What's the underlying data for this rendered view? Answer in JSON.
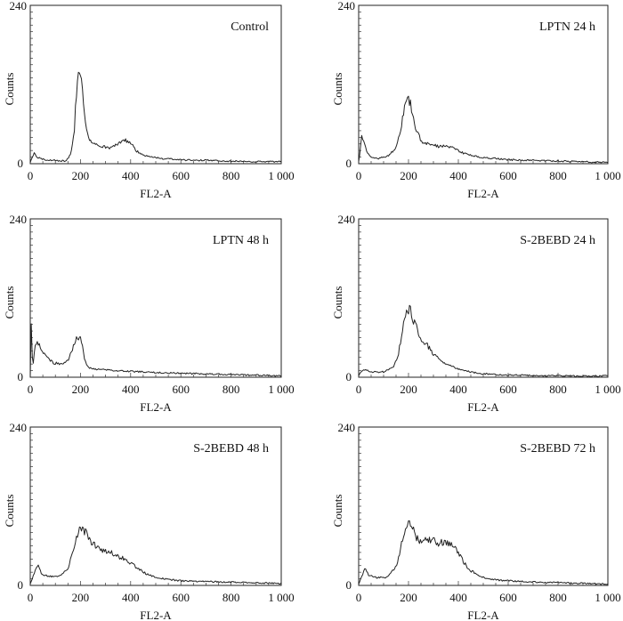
{
  "chart_data": [
    {
      "type": "line",
      "title": "Control",
      "xlabel": "FL2-A",
      "ylabel": "Counts",
      "xlim": [
        0,
        1000
      ],
      "ylim": [
        0,
        240
      ],
      "x_ticks": [
        0,
        200,
        400,
        600,
        800,
        1000
      ],
      "x_tick_labels": [
        "0",
        "200",
        "400",
        "600",
        "800",
        "1 000"
      ],
      "y_tick_labels": [
        "0",
        "240"
      ],
      "series": [
        {
          "name": "Control",
          "x": [
            0,
            15,
            30,
            60,
            100,
            140,
            160,
            175,
            185,
            195,
            205,
            215,
            230,
            250,
            280,
            320,
            350,
            380,
            400,
            420,
            450,
            480,
            520,
            560,
            600,
            650,
            700,
            800,
            900,
            1000
          ],
          "y": [
            3,
            16,
            9,
            6,
            5,
            4,
            13,
            45,
            118,
            145,
            118,
            72,
            40,
            30,
            26,
            24,
            30,
            35,
            32,
            20,
            13,
            10,
            8,
            7,
            6,
            5,
            5,
            4,
            3,
            3
          ]
        }
      ]
    },
    {
      "type": "line",
      "title": "LPTN 24 h",
      "xlabel": "FL2-A",
      "ylabel": "Counts",
      "xlim": [
        0,
        1000
      ],
      "ylim": [
        0,
        240
      ],
      "x_ticks": [
        0,
        200,
        400,
        600,
        800,
        1000
      ],
      "x_tick_labels": [
        "0",
        "200",
        "400",
        "600",
        "800",
        "1 000"
      ],
      "y_tick_labels": [
        "0",
        "240"
      ],
      "series": [
        {
          "name": "LPTN 24 h",
          "x": [
            0,
            5,
            12,
            22,
            35,
            50,
            80,
            120,
            150,
            170,
            185,
            200,
            212,
            225,
            250,
            280,
            320,
            350,
            380,
            420,
            460,
            500,
            550,
            600,
            700,
            800,
            900,
            1000
          ],
          "y": [
            4,
            16,
            42,
            30,
            16,
            10,
            8,
            12,
            25,
            55,
            88,
            100,
            85,
            55,
            35,
            30,
            26,
            28,
            24,
            16,
            12,
            9,
            8,
            6,
            5,
            4,
            3,
            2
          ]
        }
      ]
    },
    {
      "type": "line",
      "title": "LPTN 48 h",
      "xlabel": "FL2-A",
      "ylabel": "Counts",
      "xlim": [
        0,
        1000
      ],
      "ylim": [
        0,
        240
      ],
      "x_ticks": [
        0,
        200,
        400,
        600,
        800,
        1000
      ],
      "x_tick_labels": [
        "0",
        "200",
        "400",
        "600",
        "800",
        "1 000"
      ],
      "y_tick_labels": [
        "0",
        "240"
      ],
      "series": [
        {
          "name": "LPTN 48 h",
          "x": [
            0,
            3,
            5,
            8,
            10,
            12,
            20,
            30,
            45,
            60,
            90,
            120,
            150,
            170,
            185,
            195,
            205,
            215,
            230,
            260,
            300,
            350,
            400,
            500,
            600,
            700,
            800,
            900,
            1000
          ],
          "y": [
            0,
            70,
            80,
            30,
            5,
            20,
            48,
            55,
            40,
            32,
            22,
            20,
            25,
            45,
            60,
            62,
            55,
            30,
            15,
            12,
            11,
            10,
            9,
            7,
            6,
            5,
            4,
            3,
            2
          ]
        }
      ]
    },
    {
      "type": "line",
      "title": "S-2BEBD 24 h",
      "xlabel": "FL2-A",
      "ylabel": "Counts",
      "xlim": [
        0,
        1000
      ],
      "ylim": [
        0,
        240
      ],
      "x_ticks": [
        0,
        200,
        400,
        600,
        800,
        1000
      ],
      "x_tick_labels": [
        "0",
        "200",
        "400",
        "600",
        "800",
        "1 000"
      ],
      "y_tick_labels": [
        "0",
        "240"
      ],
      "series": [
        {
          "name": "S-2BEBD 24 h",
          "x": [
            0,
            20,
            50,
            100,
            140,
            160,
            175,
            190,
            200,
            210,
            225,
            250,
            275,
            300,
            330,
            370,
            420,
            480,
            550,
            650,
            800,
            1000
          ],
          "y": [
            3,
            12,
            8,
            8,
            15,
            35,
            70,
            98,
            105,
            98,
            80,
            60,
            48,
            35,
            24,
            17,
            10,
            6,
            4,
            3,
            2,
            2
          ]
        }
      ]
    },
    {
      "type": "line",
      "title": "S-2BEBD 48 h",
      "xlabel": "FL2-A",
      "ylabel": "Counts",
      "xlim": [
        0,
        1000
      ],
      "ylim": [
        0,
        240
      ],
      "x_ticks": [
        0,
        200,
        400,
        600,
        800,
        1000
      ],
      "x_tick_labels": [
        "0",
        "200",
        "400",
        "600",
        "800",
        "1 000"
      ],
      "y_tick_labels": [
        "0",
        "240"
      ],
      "series": [
        {
          "name": "S-2BEBD 48 h",
          "x": [
            0,
            15,
            30,
            45,
            70,
            110,
            150,
            175,
            190,
            205,
            220,
            240,
            270,
            300,
            340,
            380,
            420,
            460,
            500,
            550,
            600,
            700,
            800,
            900,
            1000
          ],
          "y": [
            3,
            18,
            30,
            18,
            14,
            13,
            25,
            55,
            78,
            88,
            80,
            65,
            58,
            52,
            46,
            40,
            28,
            18,
            12,
            9,
            7,
            6,
            5,
            4,
            3
          ]
        }
      ]
    },
    {
      "type": "line",
      "title": "S-2BEBD 72 h",
      "xlabel": "FL2-A",
      "ylabel": "Counts",
      "xlim": [
        0,
        1000
      ],
      "ylim": [
        0,
        240
      ],
      "x_ticks": [
        0,
        200,
        400,
        600,
        800,
        1000
      ],
      "x_tick_labels": [
        "0",
        "200",
        "400",
        "600",
        "800",
        "1 000"
      ],
      "y_tick_labels": [
        "0",
        "240"
      ],
      "series": [
        {
          "name": "S-2BEBD 72 h",
          "x": [
            0,
            15,
            25,
            40,
            70,
            110,
            150,
            170,
            185,
            200,
            215,
            235,
            260,
            290,
            320,
            350,
            380,
            410,
            440,
            480,
            520,
            560,
            600,
            700,
            800,
            900,
            1000
          ],
          "y": [
            3,
            15,
            25,
            16,
            12,
            12,
            28,
            60,
            82,
            92,
            85,
            70,
            66,
            70,
            65,
            66,
            60,
            42,
            25,
            15,
            10,
            8,
            7,
            5,
            4,
            3,
            2
          ]
        }
      ]
    }
  ]
}
